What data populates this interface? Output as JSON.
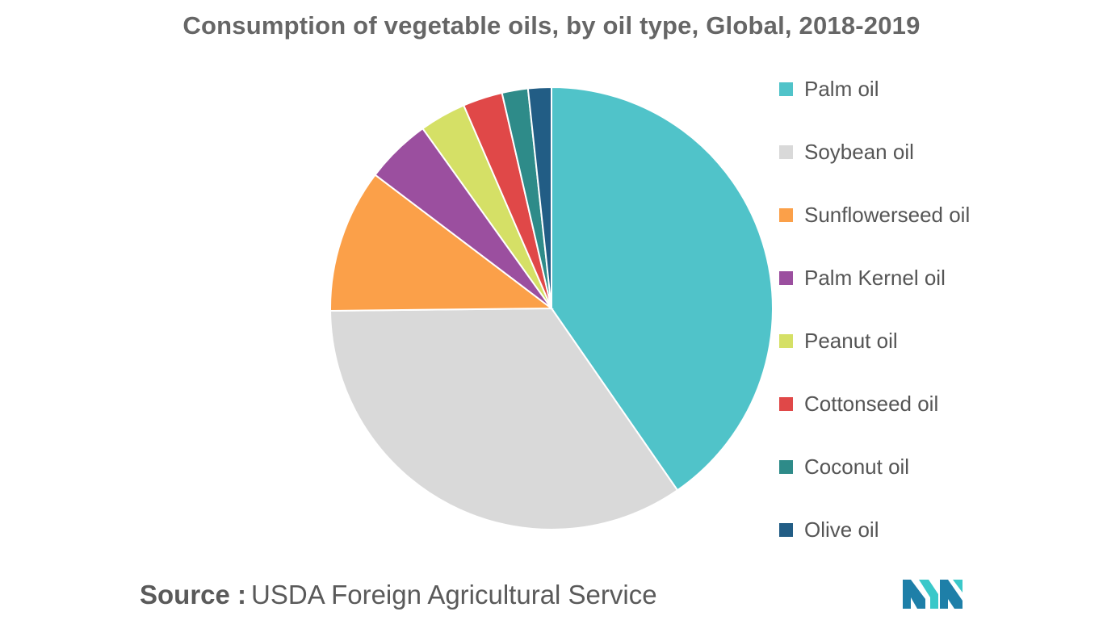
{
  "chart_data": {
    "type": "pie",
    "title": "Consumption of vegetable oils, by oil type, Global, 2018-2019",
    "series": [
      {
        "name": "Palm oil",
        "value": 40.4,
        "color": "#50C3C9"
      },
      {
        "name": "Soybean oil",
        "value": 34.5,
        "color": "#D9D9D9"
      },
      {
        "name": "Sunflowerseed oil",
        "value": 10.5,
        "color": "#FBA049"
      },
      {
        "name": "Palm Kernel oil",
        "value": 4.8,
        "color": "#9B4F9F"
      },
      {
        "name": "Peanut oil",
        "value": 3.4,
        "color": "#D5E066"
      },
      {
        "name": "Cottonseed oil",
        "value": 2.9,
        "color": "#E04848"
      },
      {
        "name": "Coconut oil",
        "value": 1.9,
        "color": "#2E8B89"
      },
      {
        "name": "Olive oil",
        "value": 1.7,
        "color": "#225D85"
      }
    ],
    "legend_position": "right"
  },
  "source": {
    "label": "Source :",
    "text": "USDA Foreign Agricultural Service"
  },
  "logo": {
    "icon": "mordor-intelligence-logo-icon",
    "colors": [
      "#1E7FA8",
      "#3AC8C9"
    ]
  }
}
